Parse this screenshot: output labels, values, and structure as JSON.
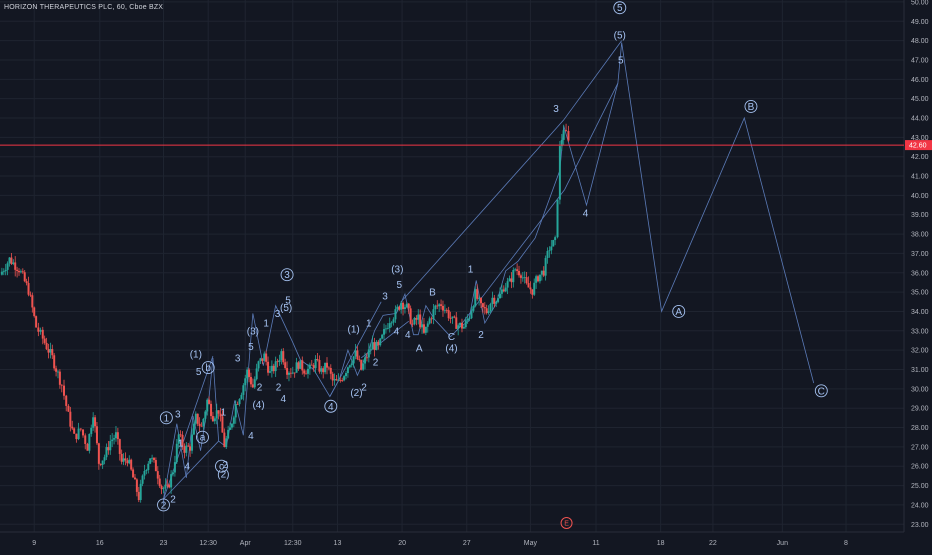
{
  "chart_data": {
    "type": "candlestick",
    "title": "HORIZON THERAPEUTICS PLC, 60, Cboe BZX",
    "ylim": [
      22.6,
      50.1
    ],
    "y_ticks": [
      "23.00",
      "24.00",
      "25.00",
      "26.00",
      "27.00",
      "28.00",
      "29.00",
      "30.00",
      "31.00",
      "32.00",
      "33.00",
      "34.00",
      "35.00",
      "36.00",
      "37.00",
      "38.00",
      "39.00",
      "40.00",
      "41.00",
      "42.00",
      "43.00",
      "44.00",
      "45.00",
      "46.00",
      "47.00",
      "48.00",
      "49.00",
      "50.00"
    ],
    "x_ticks": [
      "9",
      "16",
      "23",
      "12:30",
      "Apr",
      "12:30",
      "13",
      "20",
      "27",
      "May",
      "11",
      "18",
      "22",
      "Jun",
      "8"
    ],
    "x_tick_pos": [
      0.6,
      7.5,
      14.2,
      18.9,
      22.8,
      27.8,
      32.5,
      39.3,
      46.1,
      52.8,
      59.7,
      66.5,
      72.0,
      79.3,
      86.0
    ],
    "x_range": [
      -3,
      92.1
    ],
    "last_price": "42.60",
    "last_price_value": 42.6,
    "earnings_marker": "E",
    "earnings_x": 56.6,
    "grid": true,
    "colors": {
      "background": "#131722",
      "grid": "#1f2430",
      "axis_text": "#b2b5be",
      "up": "#26a69a",
      "down": "#ef5350",
      "wave": "#5b7bb8",
      "wave_text": "#a6c3f2",
      "price_line": "#f23645"
    },
    "price_path": [
      [
        -3,
        35.9
      ],
      [
        -2,
        36.7
      ],
      [
        -1,
        36.2
      ],
      [
        0,
        35.1
      ],
      [
        0.8,
        33.2
      ],
      [
        1.5,
        32.6
      ],
      [
        2.5,
        31.6
      ],
      [
        3.5,
        30.2
      ],
      [
        4.2,
        28.6
      ],
      [
        4.8,
        27.5
      ],
      [
        5.5,
        27.9
      ],
      [
        6.2,
        27.0
      ],
      [
        6.8,
        28.8
      ],
      [
        7.4,
        26.2
      ],
      [
        8,
        26.5
      ],
      [
        8.6,
        27.3
      ],
      [
        9.2,
        27.6
      ],
      [
        9.8,
        26.2
      ],
      [
        10.4,
        26.4
      ],
      [
        11,
        25.4
      ],
      [
        11.6,
        24.4
      ],
      [
        12.2,
        25.8
      ],
      [
        12.8,
        26.5
      ],
      [
        13.4,
        25.9
      ],
      [
        14,
        24.9
      ],
      [
        14.6,
        24.8
      ],
      [
        15.2,
        25.8
      ],
      [
        15.8,
        27.6
      ],
      [
        16.4,
        26.9
      ],
      [
        17,
        27.0
      ],
      [
        17.6,
        28.5
      ],
      [
        18.2,
        28.0
      ],
      [
        18.8,
        29.4
      ],
      [
        19.4,
        28.6
      ],
      [
        20,
        28.9
      ],
      [
        20.6,
        27.1
      ],
      [
        21.2,
        27.9
      ],
      [
        21.8,
        29.2
      ],
      [
        22.4,
        29.9
      ],
      [
        23,
        30.9
      ],
      [
        23.6,
        30.1
      ],
      [
        24.2,
        31.3
      ],
      [
        24.8,
        31.7
      ],
      [
        25.4,
        30.8
      ],
      [
        26,
        31.2
      ],
      [
        26.6,
        31.9
      ],
      [
        27.2,
        31.0
      ],
      [
        27.8,
        30.9
      ],
      [
        28.4,
        31.3
      ],
      [
        29,
        31.0
      ],
      [
        29.6,
        31.0
      ],
      [
        30.2,
        31.4
      ],
      [
        30.8,
        30.9
      ],
      [
        31.4,
        31.2
      ],
      [
        32,
        30.4
      ],
      [
        32.6,
        30.3
      ],
      [
        33.2,
        30.8
      ],
      [
        33.8,
        31.4
      ],
      [
        34.4,
        31.8
      ],
      [
        35,
        31.0
      ],
      [
        35.6,
        31.7
      ],
      [
        36.2,
        32.3
      ],
      [
        36.8,
        32.1
      ],
      [
        37.4,
        32.9
      ],
      [
        38,
        33.6
      ],
      [
        38.6,
        33.9
      ],
      [
        39.2,
        34.5
      ],
      [
        39.8,
        34.2
      ],
      [
        40.4,
        33.3
      ],
      [
        41,
        33.7
      ],
      [
        41.6,
        32.8
      ],
      [
        42.2,
        33.6
      ],
      [
        42.8,
        34.2
      ],
      [
        43.4,
        34.4
      ],
      [
        44,
        34.0
      ],
      [
        44.6,
        33.5
      ],
      [
        45.2,
        33.3
      ],
      [
        45.8,
        33.2
      ],
      [
        46.4,
        33.8
      ],
      [
        47,
        34.9
      ],
      [
        47.6,
        34.2
      ],
      [
        48.2,
        34.0
      ],
      [
        48.8,
        34.7
      ],
      [
        49.4,
        34.6
      ],
      [
        50,
        35.3
      ],
      [
        50.6,
        35.5
      ],
      [
        51.2,
        36.2
      ],
      [
        51.8,
        36.0
      ],
      [
        52.4,
        35.3
      ],
      [
        53,
        35.1
      ],
      [
        53.6,
        35.8
      ],
      [
        54.2,
        36.1
      ],
      [
        54.8,
        37.3
      ],
      [
        55.4,
        37.6
      ],
      [
        55.9,
        42.4
      ],
      [
        56.3,
        43.5
      ],
      [
        56.8,
        42.7
      ]
    ],
    "wave_lines": [
      [
        [
          14.2,
          24.0
        ],
        [
          14.2,
          24.3
        ],
        [
          15.6,
          28.2
        ],
        [
          16.6,
          25.4
        ],
        [
          17.3,
          28.6
        ],
        [
          18.1,
          26.8
        ],
        [
          19.0,
          29.6
        ],
        [
          19.4,
          31.6
        ],
        [
          20.0,
          27.3
        ],
        [
          20.8,
          27.0
        ]
      ],
      [
        [
          20.8,
          27.0
        ],
        [
          21.7,
          29.4
        ],
        [
          22.6,
          27.6
        ],
        [
          23.6,
          33.9
        ],
        [
          24.7,
          31.2
        ],
        [
          26.0,
          34.3
        ],
        [
          27.8,
          32.4
        ],
        [
          28.6,
          31.5
        ],
        [
          30.0,
          31.0
        ],
        [
          31.7,
          29.6
        ],
        [
          32.7,
          30.5
        ],
        [
          33.6,
          32.0
        ],
        [
          34.6,
          30.7
        ],
        [
          35.8,
          32.0
        ],
        [
          36.4,
          33.0
        ],
        [
          37.3,
          33.8
        ],
        [
          38.7,
          33.9
        ],
        [
          39.6,
          34.9
        ],
        [
          40.5,
          32.8
        ],
        [
          41.0,
          32.8
        ],
        [
          41.8,
          34.3
        ],
        [
          42.7,
          33.6
        ],
        [
          44.4,
          32.7
        ],
        [
          45.4,
          33.2
        ],
        [
          46.3,
          33.5
        ],
        [
          47.1,
          35.6
        ],
        [
          48.0,
          33.4
        ],
        [
          49.2,
          34.4
        ],
        [
          50.2,
          36.1
        ],
        [
          51.5,
          36.6
        ],
        [
          53.3,
          37.8
        ],
        [
          55.9,
          41.3
        ],
        [
          56.3,
          43.6
        ],
        [
          58.7,
          39.5
        ],
        [
          62.0,
          45.8
        ],
        [
          62.4,
          47.9
        ],
        [
          66.6,
          34.0
        ],
        [
          75.3,
          44.0
        ],
        [
          82.6,
          30.3
        ]
      ]
    ],
    "trend_lines": [
      [
        [
          31.7,
          29.6
        ],
        [
          37.1,
          34.5
        ]
      ],
      [
        [
          35.0,
          31.6
        ],
        [
          40.0,
          33.5
        ]
      ],
      [
        [
          39.2,
          34.5
        ],
        [
          56.3,
          43.9
        ]
      ],
      [
        [
          56.3,
          43.9
        ],
        [
          62.4,
          48.0
        ]
      ],
      [
        [
          45.0,
          33.0
        ],
        [
          56.4,
          40.3
        ]
      ],
      [
        [
          56.4,
          40.3
        ],
        [
          62.0,
          45.8
        ]
      ],
      [
        [
          14.2,
          24.3
        ],
        [
          19.4,
          31.7
        ]
      ],
      [
        [
          14.2,
          24.3
        ],
        [
          20.0,
          27.3
        ]
      ]
    ],
    "labels": [
      {
        "t": "1",
        "x": 14.5,
        "y": 28.5,
        "c": true
      },
      {
        "t": "2",
        "x": 14.2,
        "y": 24.0,
        "c": true
      },
      {
        "t": "2",
        "x": 15.2,
        "y": 24.3,
        "c": false
      },
      {
        "t": "3",
        "x": 15.7,
        "y": 28.7,
        "c": false
      },
      {
        "t": "4",
        "x": 16.7,
        "y": 26.0,
        "c": false
      },
      {
        "t": "1",
        "x": 16.0,
        "y": 27.2,
        "c": false
      },
      {
        "t": "(1)",
        "x": 17.6,
        "y": 31.8,
        "c": false
      },
      {
        "t": "5",
        "x": 17.9,
        "y": 30.9,
        "c": false
      },
      {
        "t": "b",
        "x": 18.9,
        "y": 31.1,
        "c": true
      },
      {
        "t": "a",
        "x": 18.3,
        "y": 27.5,
        "c": true
      },
      {
        "t": "c",
        "x": 20.3,
        "y": 26.0,
        "c": true
      },
      {
        "t": "2",
        "x": 20.7,
        "y": 26.1,
        "c": false
      },
      {
        "t": "(2)",
        "x": 20.5,
        "y": 25.6,
        "c": false
      },
      {
        "t": "1",
        "x": 20.5,
        "y": 28.8,
        "c": false
      },
      {
        "t": "3",
        "x": 22.0,
        "y": 31.6,
        "c": false
      },
      {
        "t": "(3)",
        "x": 23.6,
        "y": 33.0,
        "c": false
      },
      {
        "t": "5",
        "x": 23.4,
        "y": 32.2,
        "c": false
      },
      {
        "t": "1",
        "x": 25.0,
        "y": 33.4,
        "c": false
      },
      {
        "t": "3",
        "x": 26.2,
        "y": 33.9,
        "c": false
      },
      {
        "t": "5",
        "x": 27.3,
        "y": 34.6,
        "c": false
      },
      {
        "t": "(5)",
        "x": 27.1,
        "y": 34.2,
        "c": false
      },
      {
        "t": "3",
        "x": 27.2,
        "y": 35.9,
        "c": true
      },
      {
        "t": "2",
        "x": 24.3,
        "y": 30.1,
        "c": false
      },
      {
        "t": "2",
        "x": 26.3,
        "y": 30.1,
        "c": false
      },
      {
        "t": "4",
        "x": 26.8,
        "y": 29.5,
        "c": false
      },
      {
        "t": "(4)",
        "x": 24.2,
        "y": 29.2,
        "c": false
      },
      {
        "t": "4",
        "x": 23.4,
        "y": 27.6,
        "c": false
      },
      {
        "t": "4",
        "x": 31.8,
        "y": 29.1,
        "c": true
      },
      {
        "t": "(1)",
        "x": 34.2,
        "y": 33.1,
        "c": false
      },
      {
        "t": "1",
        "x": 35.8,
        "y": 33.4,
        "c": false
      },
      {
        "t": "2",
        "x": 35.3,
        "y": 30.1,
        "c": false
      },
      {
        "t": "(2)",
        "x": 34.5,
        "y": 29.8,
        "c": false
      },
      {
        "t": "2",
        "x": 36.5,
        "y": 31.4,
        "c": false
      },
      {
        "t": "3",
        "x": 37.5,
        "y": 34.8,
        "c": false
      },
      {
        "t": "(3)",
        "x": 38.8,
        "y": 36.2,
        "c": false
      },
      {
        "t": "5",
        "x": 39.0,
        "y": 35.4,
        "c": false
      },
      {
        "t": "4",
        "x": 38.7,
        "y": 33.0,
        "c": false
      },
      {
        "t": "4",
        "x": 39.9,
        "y": 32.8,
        "c": false
      },
      {
        "t": "A",
        "x": 41.1,
        "y": 32.1,
        "c": false
      },
      {
        "t": "B",
        "x": 42.5,
        "y": 35.0,
        "c": false
      },
      {
        "t": "C",
        "x": 44.5,
        "y": 32.7,
        "c": false
      },
      {
        "t": "(4)",
        "x": 44.5,
        "y": 32.1,
        "c": false
      },
      {
        "t": "1",
        "x": 46.5,
        "y": 36.2,
        "c": false
      },
      {
        "t": "2",
        "x": 47.6,
        "y": 32.8,
        "c": false
      },
      {
        "t": "3",
        "x": 55.5,
        "y": 44.5,
        "c": false
      },
      {
        "t": "4",
        "x": 58.6,
        "y": 39.1,
        "c": false
      },
      {
        "t": "5",
        "x": 62.2,
        "y": 49.7,
        "c": true
      },
      {
        "t": "(5)",
        "x": 62.2,
        "y": 48.3,
        "c": false
      },
      {
        "t": "5",
        "x": 62.3,
        "y": 47.0,
        "c": false
      },
      {
        "t": "A",
        "x": 68.4,
        "y": 34.0,
        "c": true
      },
      {
        "t": "B",
        "x": 76.0,
        "y": 44.6,
        "c": true
      },
      {
        "t": "C",
        "x": 83.4,
        "y": 29.9,
        "c": true
      }
    ]
  }
}
